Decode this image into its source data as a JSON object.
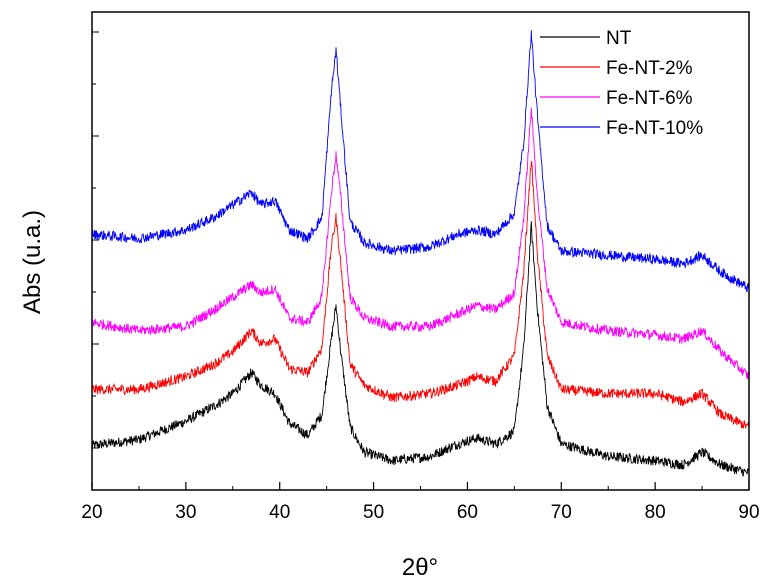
{
  "chart_data": {
    "type": "line",
    "title": "",
    "xlabel": "2θ°",
    "ylabel": "Abs (u.a.)",
    "xlim": [
      20,
      90
    ],
    "xticks": [
      20,
      30,
      40,
      50,
      60,
      70,
      80,
      90
    ],
    "yticks_labeled": false,
    "grid": false,
    "legend_position": "top-right",
    "x": [
      20,
      25,
      30,
      33,
      35,
      37,
      38,
      39.5,
      41,
      43,
      44.5,
      45.5,
      46,
      46.5,
      47.5,
      49,
      52,
      56,
      59,
      61,
      63,
      65,
      66,
      66.8,
      67.5,
      68.5,
      70,
      75,
      80,
      83,
      85,
      87,
      90
    ],
    "series": [
      {
        "name": "NT",
        "color": "#000000",
        "values": [
          0.33,
          0.4,
          0.62,
          0.8,
          0.95,
          1.2,
          1.05,
          0.95,
          0.6,
          0.45,
          0.7,
          1.6,
          2.0,
          1.45,
          0.55,
          0.25,
          0.15,
          0.2,
          0.35,
          0.42,
          0.35,
          0.5,
          1.5,
          2.95,
          1.9,
          0.8,
          0.35,
          0.2,
          0.15,
          0.1,
          0.25,
          0.1,
          0.0
        ]
      },
      {
        "name": "Fe-NT-2%",
        "color": "#ff0000",
        "values": [
          1.0,
          1.0,
          1.15,
          1.3,
          1.45,
          1.7,
          1.55,
          1.6,
          1.25,
          1.2,
          1.5,
          2.7,
          3.05,
          2.5,
          1.3,
          1.05,
          0.9,
          0.95,
          1.05,
          1.15,
          1.1,
          1.4,
          2.4,
          3.75,
          2.55,
          1.4,
          1.0,
          0.95,
          0.95,
          0.85,
          0.95,
          0.7,
          0.55
        ]
      },
      {
        "name": "Fe-NT-6%",
        "color": "#ff00ff",
        "values": [
          1.8,
          1.7,
          1.75,
          1.95,
          2.1,
          2.25,
          2.15,
          2.2,
          1.85,
          1.8,
          2.1,
          3.35,
          3.8,
          3.3,
          2.1,
          1.85,
          1.75,
          1.75,
          1.9,
          2.0,
          1.95,
          2.15,
          3.05,
          4.35,
          3.25,
          2.2,
          1.8,
          1.7,
          1.65,
          1.6,
          1.7,
          1.45,
          1.15
        ]
      },
      {
        "name": "Fe-NT-10%",
        "color": "#0000ff",
        "values": [
          2.85,
          2.8,
          2.9,
          3.05,
          3.2,
          3.35,
          3.2,
          3.25,
          2.9,
          2.8,
          3.05,
          4.55,
          5.05,
          4.35,
          3.0,
          2.75,
          2.65,
          2.7,
          2.85,
          2.9,
          2.85,
          3.1,
          3.95,
          5.25,
          4.2,
          2.95,
          2.65,
          2.6,
          2.55,
          2.5,
          2.6,
          2.4,
          2.2
        ]
      }
    ]
  }
}
